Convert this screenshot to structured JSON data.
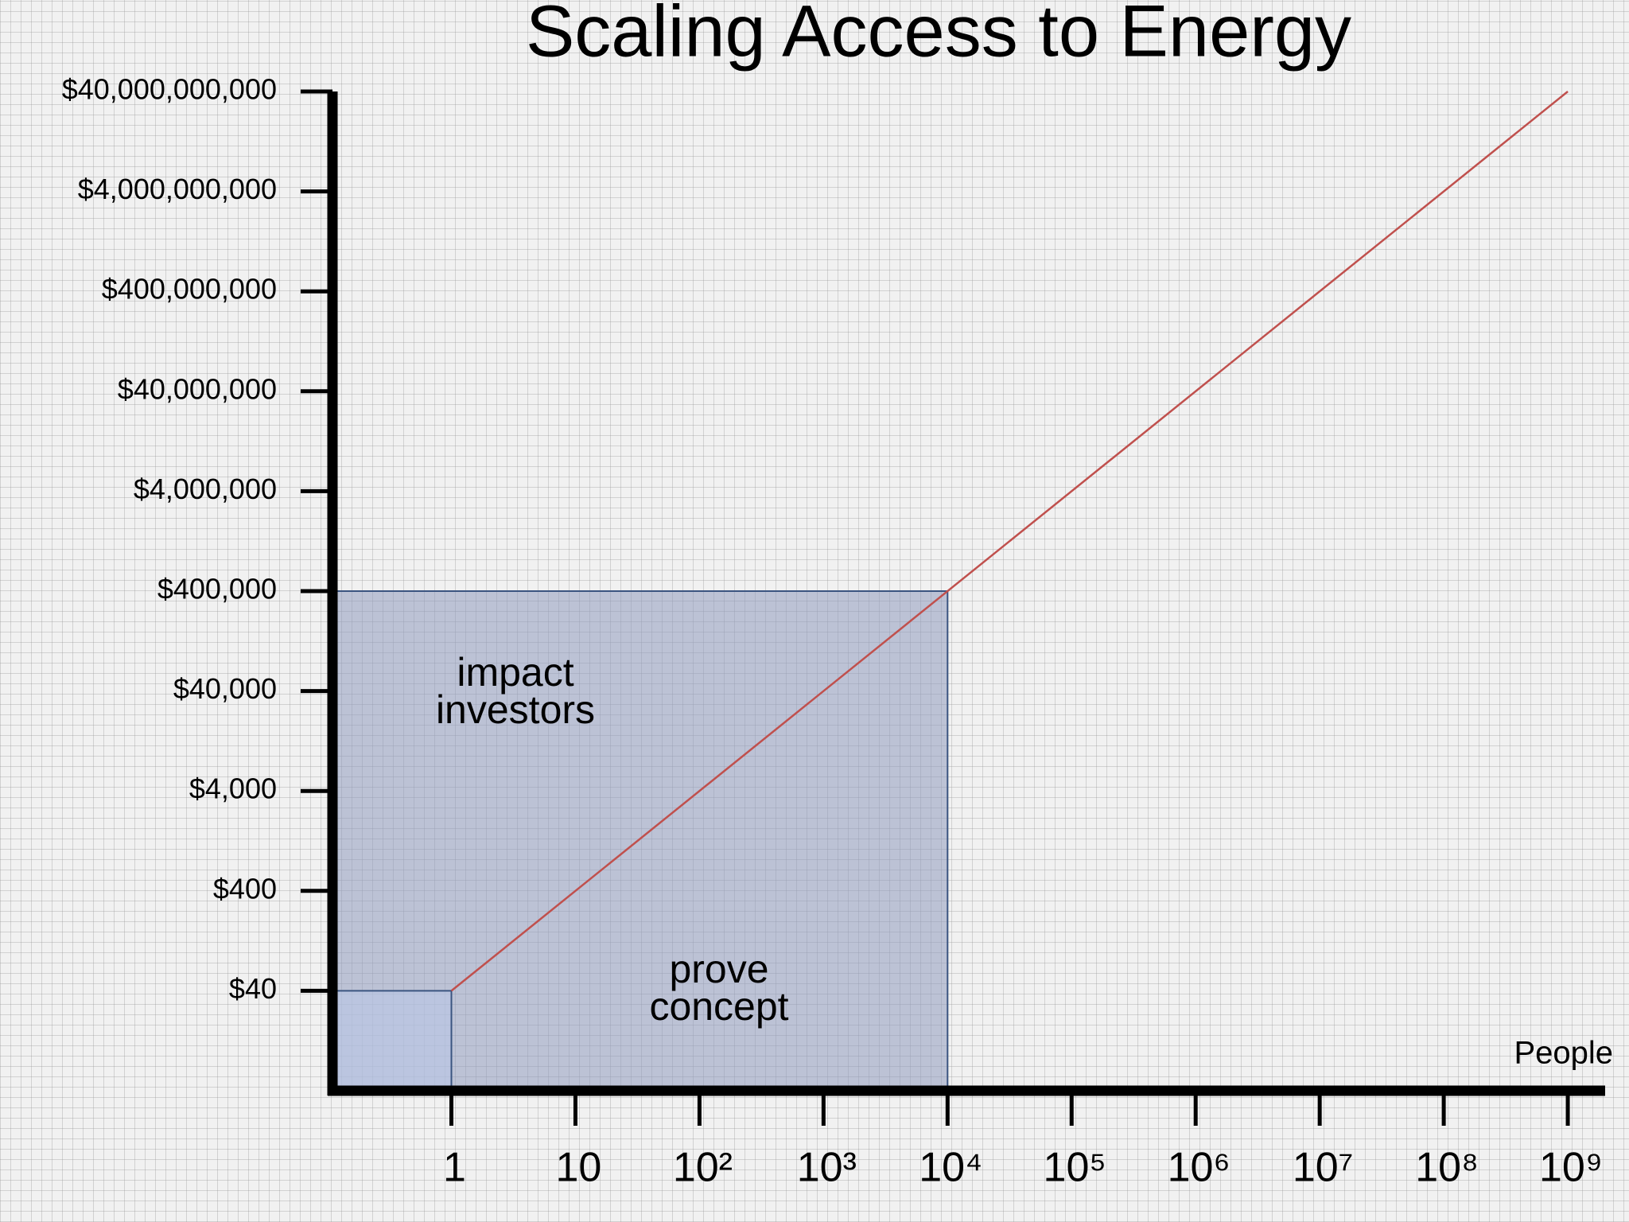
{
  "chart_data": {
    "type": "line",
    "title": "Scaling Access to Energy",
    "xlabel": "People",
    "x": [
      1,
      1000000000
    ],
    "series": [
      {
        "values": [
          40,
          40000000000
        ],
        "color": "#c0504d"
      }
    ],
    "xscale": "log",
    "yscale": "log",
    "xlim": [
      0.11,
      2000000000
    ],
    "ylim": [
      4,
      40000000000
    ],
    "xticks": [
      1,
      10,
      {
        "value": 100,
        "label": "10²"
      },
      {
        "value": 1000,
        "label": "10³"
      },
      {
        "value": 10000,
        "label": "10⁴"
      },
      {
        "value": 100000,
        "label": "10⁵"
      },
      {
        "value": 1000000,
        "label": "10⁶"
      },
      {
        "value": 10000000,
        "label": "10⁷"
      },
      {
        "value": 100000000,
        "label": "10⁸"
      },
      {
        "value": 1000000000,
        "label": "10⁹"
      }
    ],
    "yticks": [
      {
        "value": 40,
        "label": "$40"
      },
      {
        "value": 400,
        "label": "$400"
      },
      {
        "value": 4000,
        "label": "$4,000"
      },
      {
        "value": 40000,
        "label": "$40,000"
      },
      {
        "value": 400000,
        "label": "$400,000"
      },
      {
        "value": 4000000,
        "label": "$4,000,000"
      },
      {
        "value": 40000000,
        "label": "$40,000,000"
      },
      {
        "value": 400000000,
        "label": "$400,000,000"
      },
      {
        "value": 4000000000,
        "label": "$4,000,000,000"
      },
      {
        "value": 40000000000,
        "label": "$40,000,000,000"
      }
    ],
    "regions": [
      {
        "x_max": 10000,
        "y_max": 400000,
        "color": "#8f9bbd"
      },
      {
        "x_max": 1,
        "y_max": 40,
        "color": "#b9c9ea"
      }
    ],
    "annotations": [
      [
        "impact",
        "investors"
      ],
      [
        "prove",
        "concept"
      ]
    ]
  }
}
